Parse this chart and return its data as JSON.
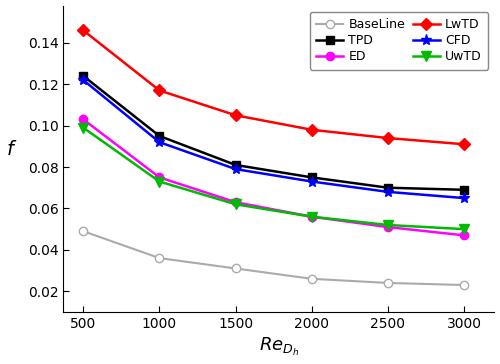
{
  "x": [
    500,
    1000,
    1500,
    2000,
    2500,
    3000
  ],
  "series": {
    "BaseLine": {
      "y": [
        0.049,
        0.036,
        0.031,
        0.026,
        0.024,
        0.023
      ],
      "color": "#aaaaaa",
      "marker": "o",
      "marker_fc": "white",
      "marker_ec": "#aaaaaa",
      "linewidth": 1.5,
      "markersize": 6
    },
    "TPD": {
      "y": [
        0.124,
        0.095,
        0.081,
        0.075,
        0.07,
        0.069
      ],
      "color": "#000000",
      "marker": "s",
      "marker_fc": "#000000",
      "marker_ec": "#000000",
      "linewidth": 1.8,
      "markersize": 6
    },
    "ED": {
      "y": [
        0.103,
        0.075,
        0.063,
        0.056,
        0.051,
        0.047
      ],
      "color": "#ff00ff",
      "marker": "o",
      "marker_fc": "#ff00ff",
      "marker_ec": "#ff00ff",
      "linewidth": 1.8,
      "markersize": 6
    },
    "LwTD": {
      "y": [
        0.146,
        0.117,
        0.105,
        0.098,
        0.094,
        0.091
      ],
      "color": "#ff0000",
      "marker": "D",
      "marker_fc": "#ff0000",
      "marker_ec": "#ff0000",
      "linewidth": 1.8,
      "markersize": 6
    },
    "CFD": {
      "y": [
        0.122,
        0.092,
        0.079,
        0.073,
        0.068,
        0.065
      ],
      "color": "#0000ff",
      "marker": "*",
      "marker_fc": "#0000ff",
      "marker_ec": "#0000ff",
      "linewidth": 1.8,
      "markersize": 8
    },
    "UwTD": {
      "y": [
        0.099,
        0.073,
        0.062,
        0.056,
        0.052,
        0.05
      ],
      "color": "#00bb00",
      "marker": "v",
      "marker_fc": "#00bb00",
      "marker_ec": "#00bb00",
      "linewidth": 1.8,
      "markersize": 7
    }
  },
  "plot_order": [
    "BaseLine",
    "TPD",
    "ED",
    "LwTD",
    "CFD",
    "UwTD"
  ],
  "legend_order": [
    "BaseLine",
    "TPD",
    "ED",
    "LwTD",
    "CFD",
    "UwTD"
  ],
  "xlim": [
    370,
    3200
  ],
  "ylim": [
    0.01,
    0.158
  ],
  "yticks": [
    0.02,
    0.04,
    0.06,
    0.08,
    0.1,
    0.12,
    0.14
  ],
  "xticks": [
    500,
    1000,
    1500,
    2000,
    2500,
    3000
  ],
  "xlabel": "$Re_{D_h}$",
  "ylabel": "$f$",
  "background_color": "#ffffff"
}
